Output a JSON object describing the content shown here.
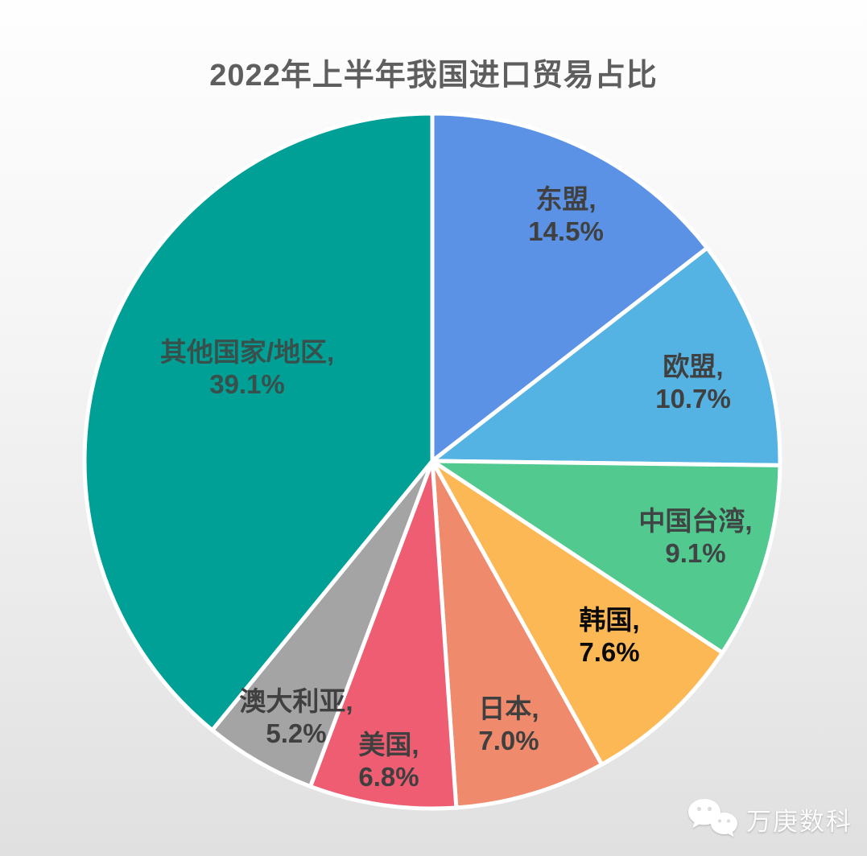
{
  "title": "2022年上半年我国进口贸易占比",
  "chart_data": {
    "type": "pie",
    "title": "2022年上半年我国进口贸易占比",
    "unit": "%",
    "start_angle_deg": 0,
    "direction": "clockwise",
    "separator_color": "#FFFFFF",
    "slices": [
      {
        "label": "东盟",
        "value": 14.5,
        "display_label": "东盟,",
        "display_value": "14.5%",
        "color": "#5B92E5",
        "text_color": "#404040"
      },
      {
        "label": "欧盟",
        "value": 10.7,
        "display_label": "欧盟,",
        "display_value": "10.7%",
        "color": "#55B3E3",
        "text_color": "#404040"
      },
      {
        "label": "中国台湾",
        "value": 9.1,
        "display_label": "中国台湾,",
        "display_value": "9.1%",
        "color": "#52C98F",
        "text_color": "#3F4444"
      },
      {
        "label": "韩国",
        "value": 7.6,
        "display_label": "韩国,",
        "display_value": "7.6%",
        "color": "#FCB854",
        "text_color": "#0A0A0A"
      },
      {
        "label": "日本",
        "value": 7.0,
        "display_label": "日本,",
        "display_value": "7.0%",
        "color": "#F08A6C",
        "text_color": "#3F3F3F"
      },
      {
        "label": "美国",
        "value": 6.8,
        "display_label": "美国,",
        "display_value": "6.8%",
        "color": "#EE5D72",
        "text_color": "#3F3F3F"
      },
      {
        "label": "澳大利亚",
        "value": 5.2,
        "display_label": "澳大利亚,",
        "display_value": "5.2%",
        "color": "#A4A4A4",
        "text_color": "#404040"
      },
      {
        "label": "其他国家/地区",
        "value": 39.1,
        "display_label": "其他国家/地区,",
        "display_value": "39.1%",
        "color": "#00A096",
        "text_color": "#38504C"
      }
    ]
  },
  "watermark": {
    "icon": "wechat-icon",
    "text": "万庚数科"
  }
}
